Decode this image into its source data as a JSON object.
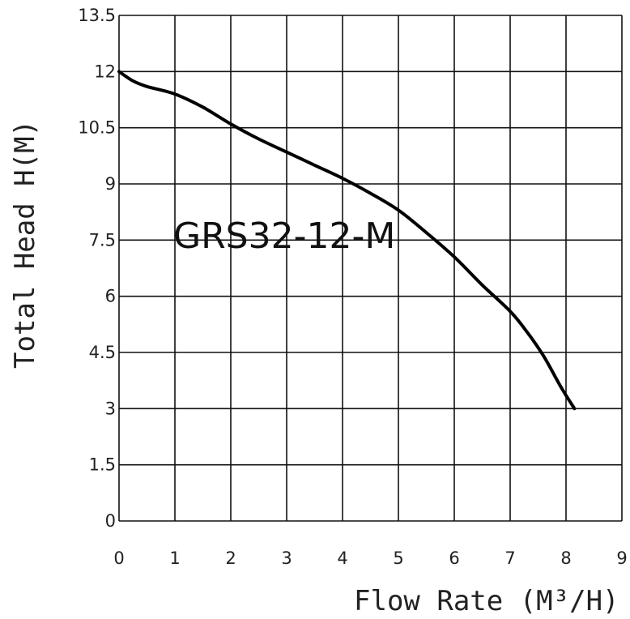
{
  "chart_data": {
    "type": "line",
    "model_label": "GRS32-12-M",
    "xlabel": "Flow Rate (M³/H)",
    "ylabel": "Total Head H(M)",
    "xlim": [
      0,
      9
    ],
    "ylim": [
      0,
      13.5
    ],
    "x_ticks": [
      "0",
      "1",
      "2",
      "3",
      "4",
      "5",
      "6",
      "7",
      "8",
      "9"
    ],
    "y_ticks": [
      "0",
      "1.5",
      "3",
      "4.5",
      "6",
      "7.5",
      "9",
      "10.5",
      "12",
      "13.5"
    ],
    "grid": true,
    "series": [
      {
        "x": [
          0,
          0.25,
          0.5,
          1.0,
          1.5,
          2.0,
          2.5,
          3.0,
          3.5,
          4.0,
          4.5,
          5.0,
          5.5,
          6.0,
          6.5,
          7.0,
          7.3,
          7.6,
          7.9,
          8.15
        ],
        "y": [
          12.0,
          11.75,
          11.6,
          11.4,
          11.05,
          10.6,
          10.2,
          9.85,
          9.5,
          9.15,
          8.75,
          8.3,
          7.7,
          7.05,
          6.3,
          5.6,
          5.05,
          4.4,
          3.6,
          3.0
        ]
      }
    ]
  }
}
